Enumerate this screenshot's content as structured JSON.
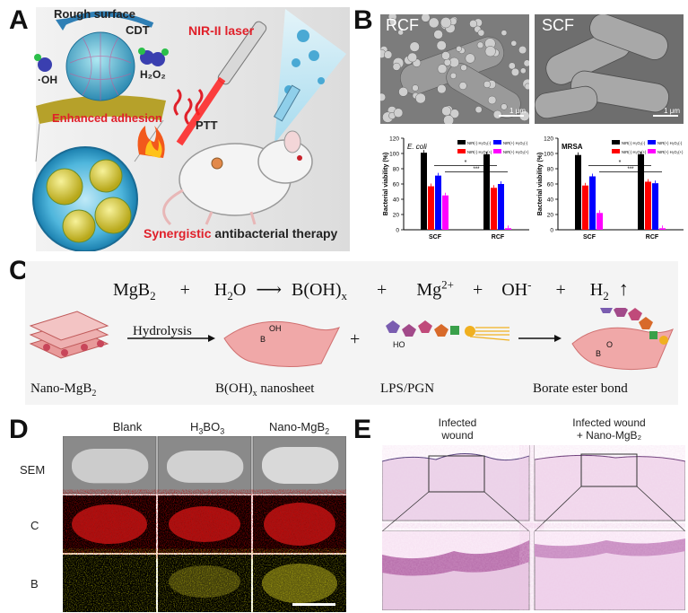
{
  "panels": {
    "A": {
      "letter": "A",
      "rough_surface": "Rough surface",
      "cdt": "CDT",
      "oh_radical": "·OH",
      "h2o2": "H₂O₂",
      "enhanced_adhesion": "Enhanced adhesion",
      "nir_laser": "NIR-II laser",
      "ptt": "PTT",
      "synergistic": "Synergistic",
      "therapy": " antibacterial therapy"
    },
    "B": {
      "letter": "B",
      "sem_left": "RCF",
      "sem_right": "SCF",
      "scale_left": "1 μm",
      "scale_right": "1 μm"
    },
    "C": {
      "letter": "C",
      "eq_mgb2": "MgB",
      "eq_mgb2_sub": "2",
      "eq_plus1": "+",
      "eq_h2o_h": "H",
      "eq_h2o_sub": "2",
      "eq_h2o_o": "O",
      "eq_boh": "B(OH)",
      "eq_boh_sub": "x",
      "eq_plus2": "+",
      "eq_mg": "Mg",
      "eq_mg_sup": "2+",
      "eq_plus3": "+",
      "eq_oh": "OH",
      "eq_oh_sup": "-",
      "eq_plus4": "+",
      "eq_h2": "H",
      "eq_h2_sub": "2",
      "hydrolysis": "Hydrolysis",
      "nano_mgb2": "Nano-MgB",
      "nano_mgb2_sub": "2",
      "boh_nanosheet": "B(OH)",
      "boh_nanosheet_sub": "x",
      "boh_nanosheet_tail": " nanosheet",
      "lps_pgn": "LPS/PGN",
      "borate": "Borate ester bond",
      "plus": "+",
      "oh_label": "OH",
      "ho_label": "HO",
      "b_label": "B",
      "o_label": "O"
    },
    "D": {
      "letter": "D",
      "col_blank": "Blank",
      "col_h3bo3_pre": "H",
      "col_h3bo3_s1": "3",
      "col_h3bo3_mid": "BO",
      "col_h3bo3_s2": "3",
      "col_nano_pre": "Nano-MgB",
      "col_nano_sub": "2",
      "row_sem": "SEM",
      "row_c": "C",
      "row_b": "B"
    },
    "E": {
      "letter": "E",
      "col1_line1": "Infected",
      "col1_line2": "wound",
      "col2_line1": "Infected wound",
      "col2_line2": "+ Nano-MgB₂"
    }
  },
  "chart_data": [
    {
      "type": "bar",
      "label": "E. coli",
      "ylabel": "Bacterial viability (%)",
      "categories": [
        "SCF",
        "RCF"
      ],
      "ylim": [
        0,
        120
      ],
      "yticks": [
        0,
        20,
        40,
        60,
        80,
        100,
        120
      ],
      "legend": [
        "NIR(-) H₂O₂(-)",
        "NIR(-) H₂O₂(+)",
        "NIR(+) H₂O₂(-)",
        "NIR(+) H₂O₂(+)"
      ],
      "colors": [
        "#000000",
        "#ff0000",
        "#0000ff",
        "#ff00ff"
      ],
      "series": [
        {
          "values": [
            101,
            99
          ]
        },
        {
          "values": [
            57,
            55
          ]
        },
        {
          "values": [
            71,
            60
          ]
        },
        {
          "values": [
            45,
            2
          ]
        }
      ],
      "significance": [
        "*",
        "***"
      ]
    },
    {
      "type": "bar",
      "label": "MRSA",
      "ylabel": "Bacterial viability (%)",
      "categories": [
        "SCF",
        "RCF"
      ],
      "ylim": [
        0,
        120
      ],
      "yticks": [
        0,
        20,
        40,
        60,
        80,
        100,
        120
      ],
      "legend": [
        "NIR(-) H₂O₂(-)",
        "NIR(-) H₂O₂(+)",
        "NIR(+) H₂O₂(-)",
        "NIR(+) H₂O₂(+)"
      ],
      "colors": [
        "#000000",
        "#ff0000",
        "#0000ff",
        "#ff00ff"
      ],
      "series": [
        {
          "values": [
            98,
            99
          ]
        },
        {
          "values": [
            58,
            63
          ]
        },
        {
          "values": [
            70,
            61
          ]
        },
        {
          "values": [
            22,
            2
          ]
        }
      ],
      "significance": [
        "*",
        "***"
      ]
    }
  ]
}
